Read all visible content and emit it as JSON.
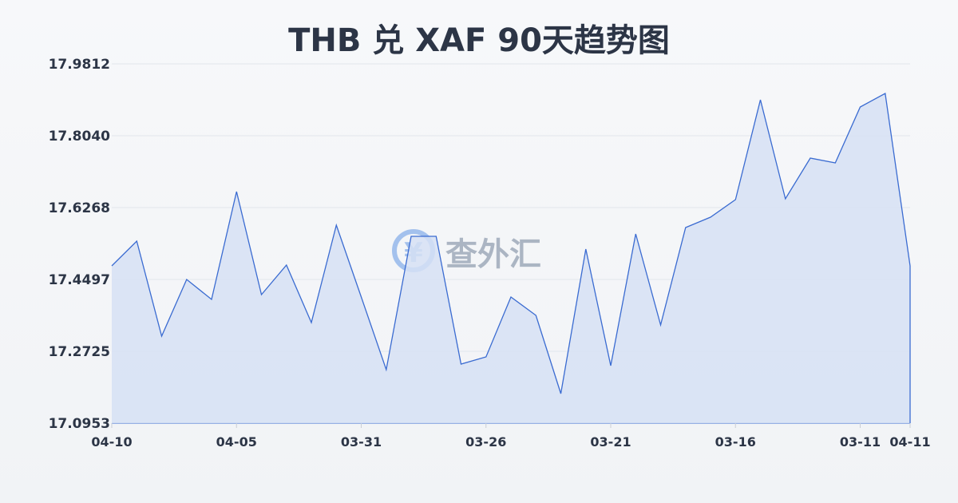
{
  "title": "THB 兑 XAF 90天趋势图",
  "watermark": "查外汇",
  "colors": {
    "line": "#3a6bd1",
    "fill": "#d6e0f5",
    "grid": "#e2e6ec",
    "text": "#2c3546"
  },
  "chart_data": {
    "type": "area",
    "title": "THB 兑 XAF 90天趋势图",
    "xlabel": "",
    "ylabel": "",
    "ylim": [
      17.0953,
      17.9812
    ],
    "yticks": [
      "17.0953",
      "17.2725",
      "17.4497",
      "17.6268",
      "17.8040",
      "17.9812"
    ],
    "xticks": [
      "04-10",
      "04-05",
      "03-31",
      "03-26",
      "03-21",
      "03-16",
      "03-11",
      "04-11"
    ],
    "grid": true,
    "x": [
      "04-10",
      "04-09",
      "04-08",
      "04-07",
      "04-06",
      "04-05",
      "04-04",
      "04-03",
      "04-02",
      "04-01",
      "03-31",
      "03-30",
      "03-29",
      "03-28",
      "03-27",
      "03-26",
      "03-25",
      "03-24",
      "03-23",
      "03-22",
      "03-21",
      "03-20",
      "03-19",
      "03-18",
      "03-17",
      "03-16",
      "03-15",
      "03-14",
      "03-13",
      "03-12",
      "03-11",
      "03-10",
      "04-11"
    ],
    "values": [
      17.4831,
      17.5441,
      17.3099,
      17.4497,
      17.4004,
      17.6662,
      17.4122,
      17.4851,
      17.3433,
      17.5835,
      17.4063,
      17.2272,
      17.556,
      17.556,
      17.241,
      17.2587,
      17.4063,
      17.3611,
      17.1681,
      17.5245,
      17.237,
      17.5619,
      17.3374,
      17.5776,
      17.6032,
      17.6465,
      17.8926,
      17.6485,
      17.7489,
      17.7371,
      17.8749,
      17.9084,
      17.4831
    ]
  }
}
